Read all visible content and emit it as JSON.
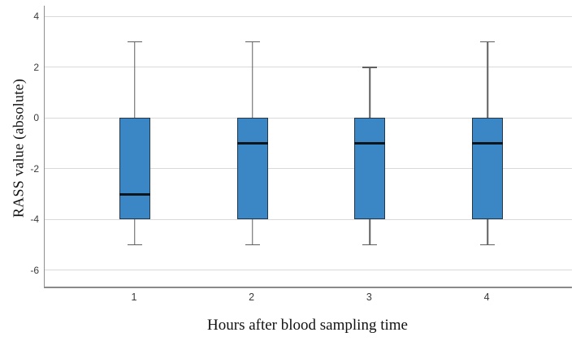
{
  "chart_data": {
    "type": "boxplot",
    "title": "",
    "xlabel": "Hours after blood sampling time",
    "ylabel": "RASS value (absolute)",
    "categories": [
      "1",
      "2",
      "3",
      "4"
    ],
    "y_ticks": [
      4,
      2,
      0,
      -2,
      -4,
      -6
    ],
    "ylim": [
      -6.64,
      4.43
    ],
    "grid": "horizontal-only",
    "legend": "none",
    "series": [
      {
        "category": "1",
        "whisker_low": -5,
        "q1": -4,
        "median": -3,
        "q3": 0,
        "whisker_high": 3
      },
      {
        "category": "2",
        "whisker_low": -5,
        "q1": -4,
        "median": -1,
        "q3": 0,
        "whisker_high": 3
      },
      {
        "category": "3",
        "whisker_low": -5,
        "q1": -4,
        "median": -1,
        "q3": 0,
        "whisker_high": 2
      },
      {
        "category": "4",
        "whisker_low": -5,
        "q1": -4,
        "median": -1,
        "q3": 0,
        "whisker_high": 3
      }
    ],
    "colors": {
      "box_fill": "#3b87c6",
      "box_border": "#25384a",
      "median": "#0c141c",
      "whisker": "#5f5f5f",
      "gridline": "#d9d9d9",
      "axis": "#8f8f8f",
      "tick_label": "#3a3a3a",
      "axis_title": "#111111",
      "background": "#ffffff"
    }
  }
}
